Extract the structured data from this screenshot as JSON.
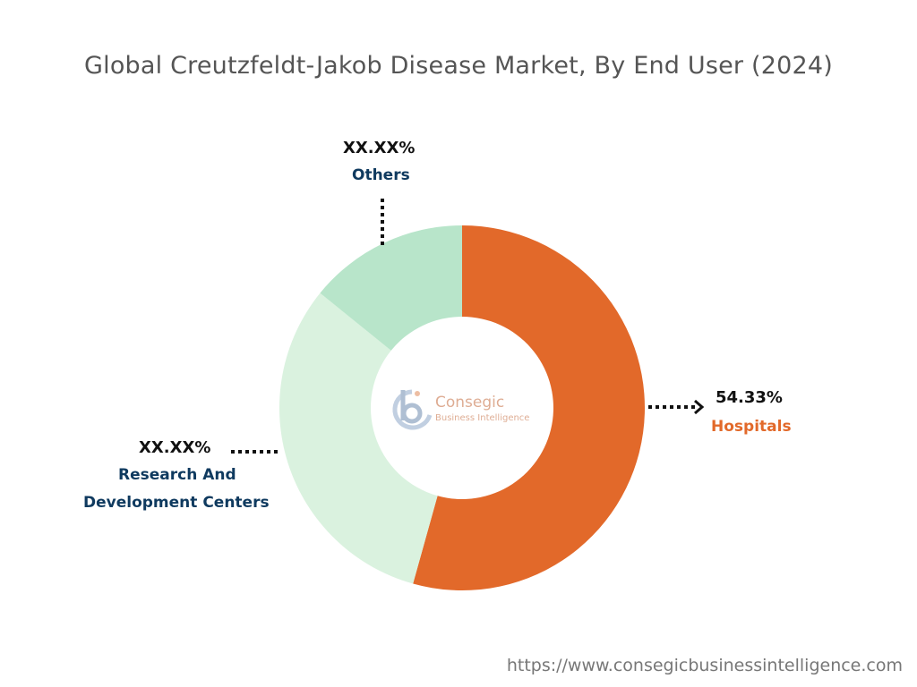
{
  "chart_data": {
    "type": "pie",
    "title": "Global Creutzfeldt-Jakob Disease Market, By End User (2024)",
    "donut": true,
    "slices": [
      {
        "label": "Hospitals",
        "value": 54.33,
        "display": "54.33%",
        "color": "#e2692a"
      },
      {
        "label": "Research And Development Centers",
        "value": 31.5,
        "display": "XX.XX%",
        "color": "#daf2df"
      },
      {
        "label": "Others",
        "value": 14.17,
        "display": "XX.XX%",
        "color": "#b8e5ca"
      }
    ]
  },
  "labels": {
    "hospitals": {
      "pct": "54.33%",
      "name": "Hospitals"
    },
    "rnd": {
      "pct": "XX.XX%",
      "name_line1": "Research And",
      "name_line2": "Development Centers"
    },
    "others": {
      "pct": "XX.XX%",
      "name": "Others"
    }
  },
  "logo": {
    "name": "Consegic",
    "subtitle": "Business Intelligence"
  },
  "footer": {
    "url": "https://www.consegicbusinessintelligence.com"
  }
}
